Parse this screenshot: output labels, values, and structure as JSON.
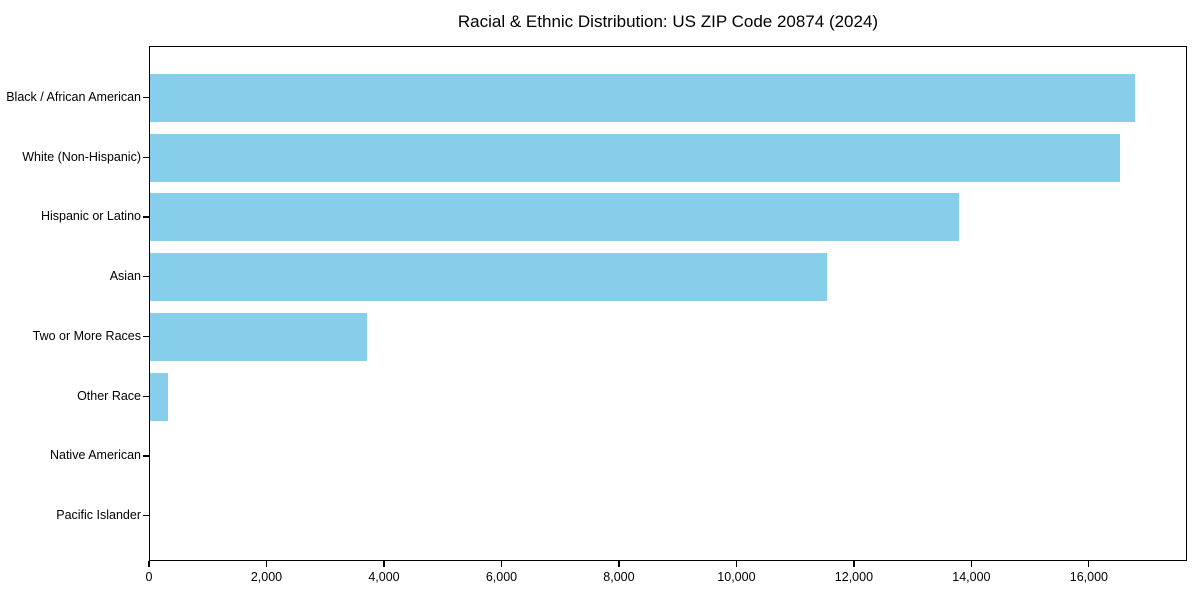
{
  "chart_data": {
    "type": "bar",
    "orientation": "horizontal",
    "title": "Racial & Ethnic Distribution: US ZIP Code 20874 (2024)",
    "categories": [
      "Black / African American",
      "White (Non-Hispanic)",
      "Hispanic or Latino",
      "Asian",
      "Two or More Races",
      "Other Race",
      "Native American",
      "Pacific Islander"
    ],
    "values": [
      16800,
      16550,
      13800,
      11550,
      3700,
      300,
      0,
      0
    ],
    "xlabel": "",
    "ylabel": "",
    "xlim": [
      0,
      17670
    ],
    "xticks": [
      0,
      2000,
      4000,
      6000,
      8000,
      10000,
      12000,
      14000,
      16000
    ],
    "xtick_labels": [
      "0",
      "2,000",
      "4,000",
      "6,000",
      "8,000",
      "10,000",
      "12,000",
      "14,000",
      "16,000"
    ],
    "bar_color": "#87CEEB",
    "text_color": "#000000",
    "frame_color": "#000000",
    "grid": false,
    "legend": null
  }
}
